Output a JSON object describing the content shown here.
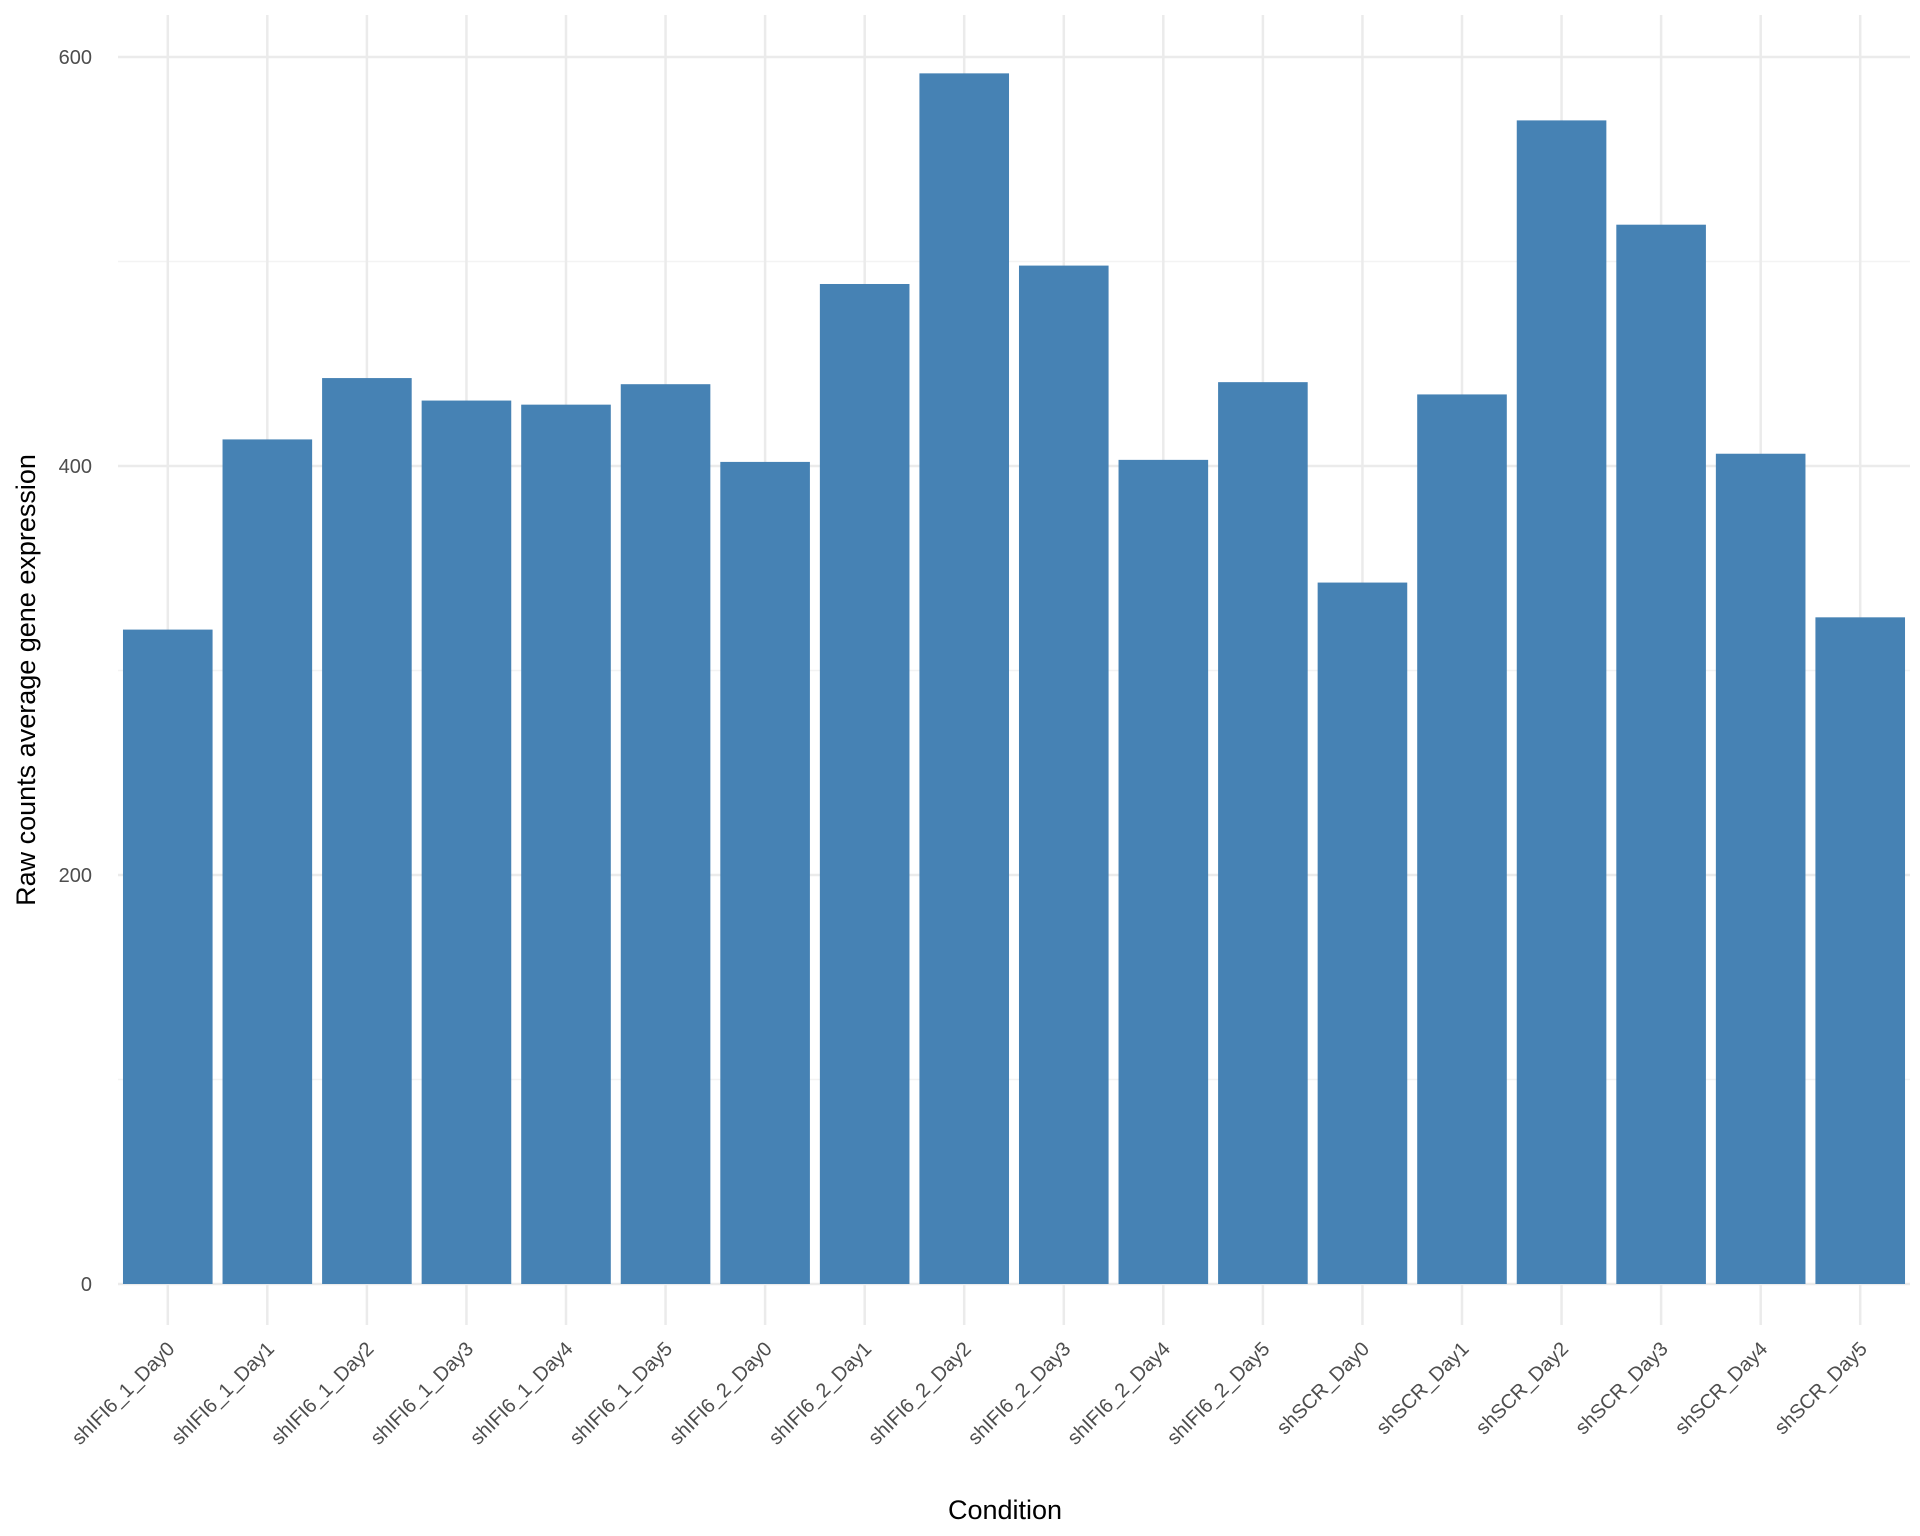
{
  "chart_data": {
    "type": "bar",
    "xlabel": "Condition",
    "ylabel": "Raw counts average gene expression",
    "categories": [
      "shIFI6_1_Day0",
      "shIFI6_1_Day1",
      "shIFI6_1_Day2",
      "shIFI6_1_Day3",
      "shIFI6_1_Day4",
      "shIFI6_1_Day5",
      "shIFI6_2_Day0",
      "shIFI6_2_Day1",
      "shIFI6_2_Day2",
      "shIFI6_2_Day3",
      "shIFI6_2_Day4",
      "shIFI6_2_Day5",
      "shSCR_Day0",
      "shSCR_Day1",
      "shSCR_Day2",
      "shSCR_Day3",
      "shSCR_Day4",
      "shSCR_Day5"
    ],
    "values": [
      320,
      413,
      443,
      432,
      430,
      440,
      402,
      489,
      592,
      498,
      403,
      441,
      343,
      435,
      569,
      518,
      406,
      326
    ],
    "ylim": [
      0,
      600
    ],
    "yticks": [
      "0",
      "200",
      "400",
      "600"
    ],
    "grid": true,
    "colors": {
      "bar": "#4682b4",
      "grid_major": "#ebebeb",
      "grid_minor": "#f3f3f3",
      "background": "#ffffff"
    }
  }
}
